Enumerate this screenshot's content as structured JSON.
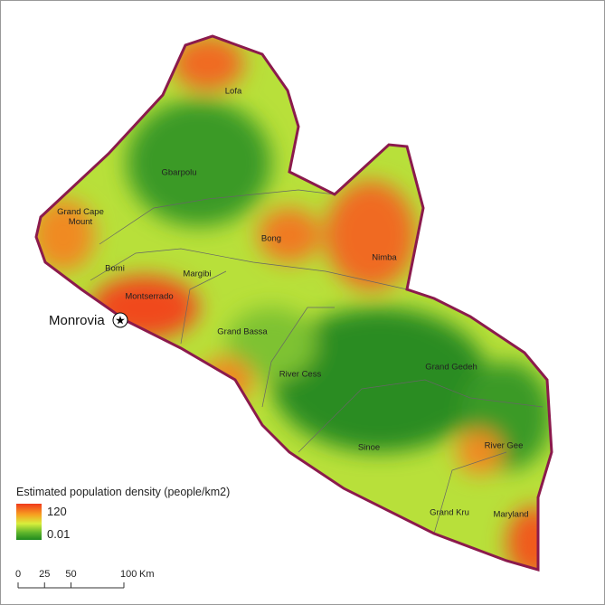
{
  "counties": [
    "Lofa",
    "Gbarpolu",
    "Grand Cape Mount",
    "Bomi",
    "Bong",
    "Nimba",
    "Margibi",
    "Montserrado",
    "Grand Bassa",
    "River Cess",
    "Grand Gedeh",
    "Sinoe",
    "River Gee",
    "Grand Kru",
    "Maryland"
  ],
  "capital": "Monrovia",
  "legend": {
    "title": "Estimated population density (people/km2)",
    "max": 120,
    "min": 0.01
  },
  "scale_bar": {
    "ticks": [
      0,
      25,
      50,
      100
    ],
    "unit": "Km"
  }
}
